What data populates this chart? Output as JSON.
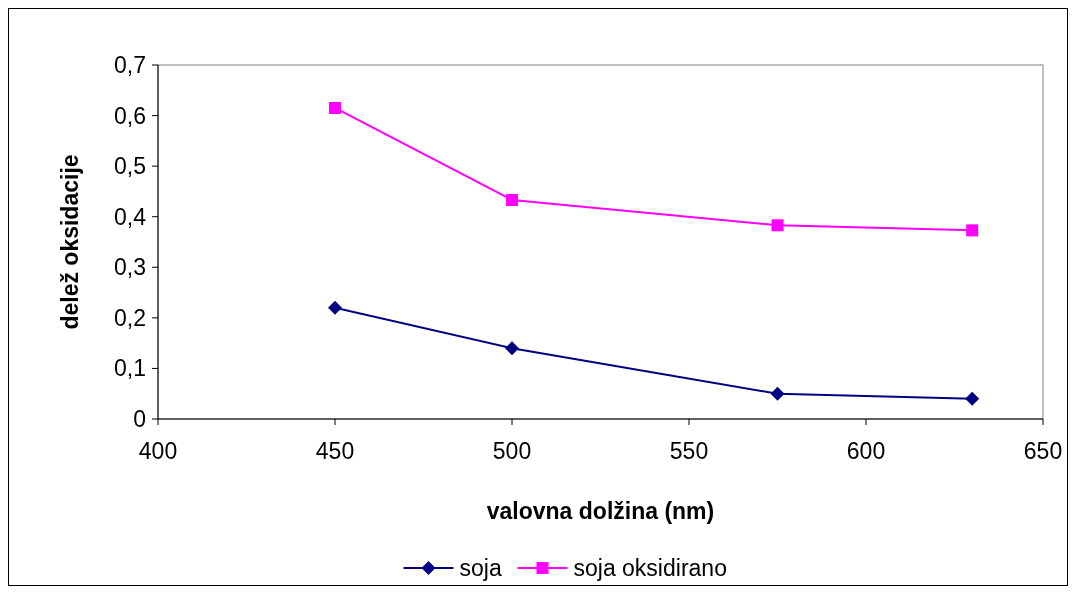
{
  "chart_data": {
    "type": "line",
    "xlabel": "valovna dolžina (nm)",
    "ylabel": "delež oksidacije",
    "x": [
      450,
      500,
      575,
      630
    ],
    "series": [
      {
        "name": "soja",
        "color": "#000080",
        "marker": "diamond",
        "values": [
          0.22,
          0.14,
          0.05,
          0.04
        ]
      },
      {
        "name": "soja oksidirano",
        "color": "#ff00ff",
        "marker": "square",
        "values": [
          0.615,
          0.433,
          0.383,
          0.373
        ]
      }
    ],
    "xlim": [
      400,
      650
    ],
    "xticks": [
      400,
      450,
      500,
      550,
      600,
      650
    ],
    "ylim": [
      0,
      0.7
    ],
    "yticks": [
      {
        "value": 0,
        "label": "0"
      },
      {
        "value": 0.1,
        "label": "0,1"
      },
      {
        "value": 0.2,
        "label": "0,2"
      },
      {
        "value": 0.3,
        "label": "0,3"
      },
      {
        "value": 0.4,
        "label": "0,4"
      },
      {
        "value": 0.5,
        "label": "0,5"
      },
      {
        "value": 0.6,
        "label": "0,6"
      },
      {
        "value": 0.7,
        "label": "0,7"
      }
    ],
    "grid": false,
    "legend": "bottom"
  }
}
